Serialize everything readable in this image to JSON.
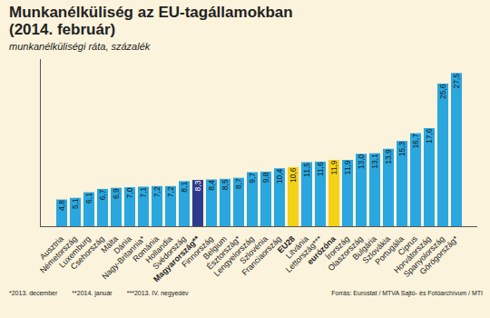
{
  "chart_data": {
    "type": "bar",
    "title": "Munkanélküliség az EU-tagállamokban\n(2014. február)",
    "subtitle": "munkanélküliségi ráta, százalék",
    "categories": [
      "Ausztria",
      "Németország",
      "Luxemburg",
      "Csehország",
      "Málta",
      "Dánia",
      "Nagy-Britannia*",
      "Románia",
      "Hollandia",
      "Svédország",
      "Magyarország**",
      "Finnország",
      "Belgium",
      "Észtország*",
      "Lengyelország",
      "Szlovénia",
      "Franciaország",
      "EU28",
      "Litvánia",
      "Lettország***",
      "eurózóna",
      "Írország",
      "Olaszország",
      "Bulgária",
      "Szlovákia",
      "Portugália",
      "Ciprus",
      "Horvátország",
      "Spanyolország",
      "Görögország*"
    ],
    "values": [
      4.8,
      5.1,
      6.1,
      6.7,
      6.9,
      7.0,
      7.1,
      7.2,
      7.2,
      8.1,
      8.3,
      8.4,
      8.5,
      8.7,
      9.7,
      9.8,
      10.4,
      10.6,
      11.5,
      11.6,
      11.9,
      11.9,
      13.0,
      13.1,
      13.9,
      15.3,
      16.7,
      17.6,
      25.6,
      27.5
    ],
    "value_labels": [
      "4,8",
      "5,1",
      "6,1",
      "6,7",
      "6,9",
      "7,0",
      "7,1",
      "7,2",
      "7,2",
      "8,1",
      "8,3",
      "8,4",
      "8,5",
      "8,7",
      "9,7",
      "9,8",
      "10,4",
      "10,6",
      "11,5",
      "11,6",
      "11,9",
      "11,9",
      "13,0",
      "13,1",
      "13,9",
      "15,3",
      "16,7",
      "17,6",
      "25,6",
      "27,5"
    ],
    "colors": [
      "#2aa7df",
      "#2aa7df",
      "#2aa7df",
      "#2aa7df",
      "#2aa7df",
      "#2aa7df",
      "#2aa7df",
      "#2aa7df",
      "#2aa7df",
      "#2aa7df",
      "#2e3a8c",
      "#2aa7df",
      "#2aa7df",
      "#2aa7df",
      "#2aa7df",
      "#2aa7df",
      "#2aa7df",
      "#f5d118",
      "#2aa7df",
      "#2aa7df",
      "#f5d118",
      "#2aa7df",
      "#2aa7df",
      "#2aa7df",
      "#2aa7df",
      "#2aa7df",
      "#2aa7df",
      "#2aa7df",
      "#2aa7df",
      "#2aa7df"
    ],
    "ylim": [
      0,
      30
    ],
    "yticks": [],
    "data_labels": true,
    "tick_labels": "x",
    "annotations": [
      "*2013. december",
      "**2014. január",
      "***2013. IV. negyedév"
    ],
    "source": "Forrás: Eurostat / MTVA Sajtó- és Fotóarchívum / MTI"
  }
}
